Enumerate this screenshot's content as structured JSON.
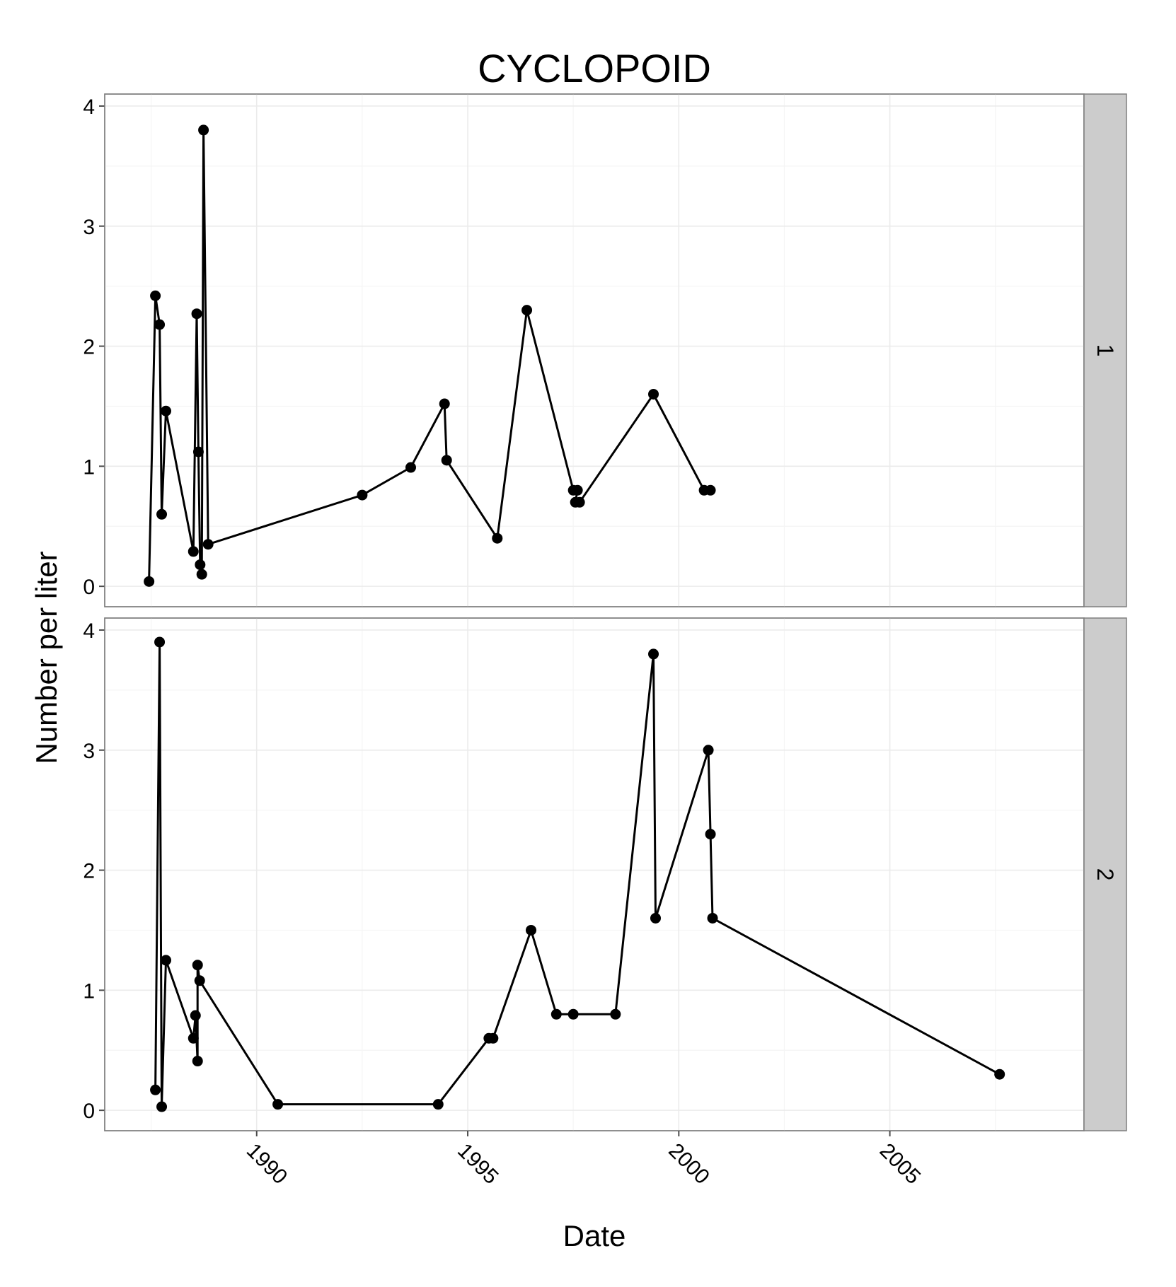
{
  "chart_data": {
    "type": "line",
    "title": "CYCLOPOID",
    "xlabel": "Date",
    "ylabel": "Number per liter",
    "xlim": [
      1986.4,
      2009.6
    ],
    "ylim": [
      -0.17,
      4.1
    ],
    "x_ticks": [
      1990,
      1995,
      2000,
      2005
    ],
    "x_tick_labels": [
      "1990",
      "1995",
      "2000",
      "2005"
    ],
    "y_ticks": [
      0,
      1,
      2,
      3,
      4
    ],
    "y_tick_labels": [
      "0",
      "1",
      "2",
      "3",
      "4"
    ],
    "grid": true,
    "facets": [
      {
        "label": "1",
        "points": [
          [
            1987.45,
            0.04
          ],
          [
            1987.6,
            2.42
          ],
          [
            1987.7,
            2.18
          ],
          [
            1987.75,
            0.6
          ],
          [
            1987.85,
            1.46
          ],
          [
            1988.5,
            0.29
          ],
          [
            1988.58,
            2.27
          ],
          [
            1988.62,
            1.12
          ],
          [
            1988.66,
            0.18
          ],
          [
            1988.7,
            0.1
          ],
          [
            1988.74,
            3.8
          ],
          [
            1988.85,
            0.35
          ],
          [
            1992.5,
            0.76
          ],
          [
            1993.65,
            0.99
          ],
          [
            1994.45,
            1.52
          ],
          [
            1994.5,
            1.05
          ],
          [
            1995.7,
            0.4
          ],
          [
            1996.4,
            2.3
          ],
          [
            1997.5,
            0.8
          ],
          [
            1997.6,
            0.8
          ],
          [
            1997.55,
            0.7
          ],
          [
            1997.65,
            0.7
          ],
          [
            1999.4,
            1.6
          ],
          [
            2000.6,
            0.8
          ],
          [
            2000.75,
            0.8
          ]
        ]
      },
      {
        "label": "2",
        "points": [
          [
            1987.6,
            0.17
          ],
          [
            1987.7,
            3.9
          ],
          [
            1987.75,
            0.03
          ],
          [
            1987.85,
            1.25
          ],
          [
            1988.5,
            0.6
          ],
          [
            1988.55,
            0.79
          ],
          [
            1988.6,
            0.41
          ],
          [
            1988.6,
            1.21
          ],
          [
            1988.65,
            1.08
          ],
          [
            1990.5,
            0.05
          ],
          [
            1994.3,
            0.05
          ],
          [
            1995.5,
            0.6
          ],
          [
            1995.6,
            0.6
          ],
          [
            1996.5,
            1.5
          ],
          [
            1997.1,
            0.8
          ],
          [
            1997.5,
            0.8
          ],
          [
            1998.5,
            0.8
          ],
          [
            1999.4,
            3.8
          ],
          [
            1999.45,
            1.6
          ],
          [
            2000.7,
            3.0
          ],
          [
            2000.75,
            2.3
          ],
          [
            2000.8,
            1.6
          ],
          [
            2007.6,
            0.3
          ]
        ]
      }
    ]
  }
}
